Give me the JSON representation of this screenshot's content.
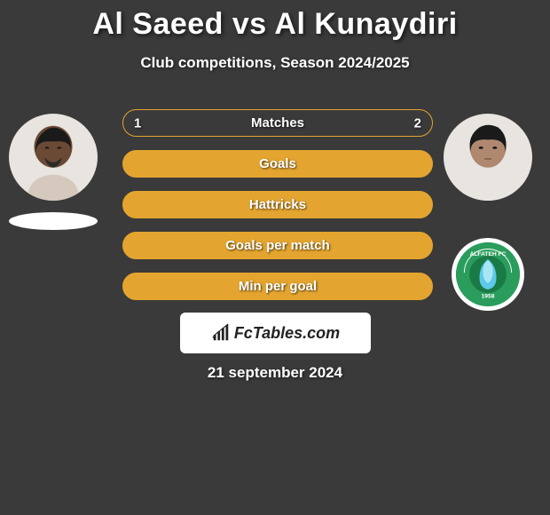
{
  "title": "Al Saeed vs Al Kunaydiri",
  "subtitle": "Club competitions, Season 2024/2025",
  "date": "21 september 2024",
  "brand": "FcTables.com",
  "colors": {
    "background": "#3a3a3a",
    "text": "#ffffff",
    "bar_border": "#e3a52f",
    "bar_fill": "#e3a52f",
    "brand_bg": "#ffffff",
    "brand_text": "#222222",
    "avatar_bg": "#e8e4e0"
  },
  "players": {
    "left": {
      "name": "Al Saeed"
    },
    "right": {
      "name": "Al Kunaydiri",
      "club_logo_bg": "#2a9d5c"
    }
  },
  "bars": [
    {
      "label": "Matches",
      "left_val": "1",
      "right_val": "2",
      "left_pct": 33,
      "right_pct": 67,
      "filled": false
    },
    {
      "label": "Goals",
      "left_val": null,
      "right_val": null,
      "left_pct": 0,
      "right_pct": 0,
      "filled": true
    },
    {
      "label": "Hattricks",
      "left_val": null,
      "right_val": null,
      "left_pct": 0,
      "right_pct": 0,
      "filled": true
    },
    {
      "label": "Goals per match",
      "left_val": null,
      "right_val": null,
      "left_pct": 0,
      "right_pct": 0,
      "filled": true
    },
    {
      "label": "Min per goal",
      "left_val": null,
      "right_val": null,
      "left_pct": 0,
      "right_pct": 0,
      "filled": true
    }
  ]
}
